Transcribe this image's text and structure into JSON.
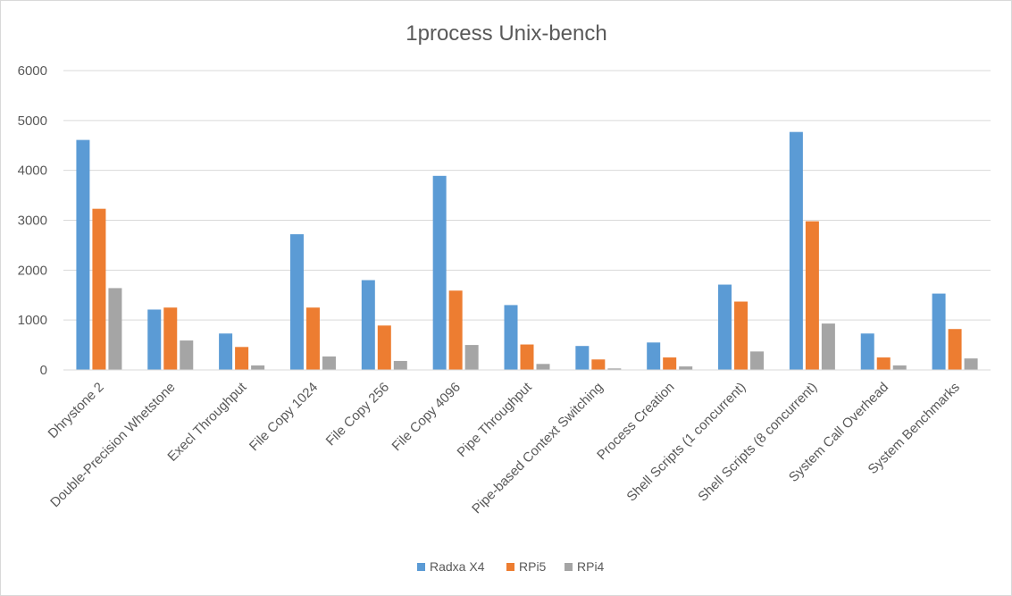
{
  "chart_data": {
    "type": "bar",
    "title": "1process Unix-bench",
    "xlabel": "",
    "ylabel": "",
    "ylim": [
      0,
      6000
    ],
    "yticks": [
      0,
      1000,
      2000,
      3000,
      4000,
      5000,
      6000
    ],
    "grid": true,
    "legend_position": "bottom",
    "categories": [
      "Dhrystone 2",
      "Double-Precision Whetstone",
      "Execl Throughput",
      "File Copy 1024",
      "File Copy 256",
      "File Copy 4096",
      "Pipe Throughput",
      "Pipe-based Context Switching",
      "Process Creation",
      "Shell Scripts (1 concurrent)",
      "Shell Scripts (8 concurrent)",
      "System Call Overhead",
      "System Benchmarks"
    ],
    "series": [
      {
        "name": "Radxa X4",
        "color": "#5b9bd5",
        "values": [
          4610,
          1210,
          730,
          2720,
          1800,
          3890,
          1300,
          480,
          550,
          1710,
          4770,
          730,
          1530
        ]
      },
      {
        "name": "RPi5",
        "color": "#ed7d31",
        "values": [
          3230,
          1250,
          460,
          1250,
          890,
          1590,
          510,
          210,
          250,
          1370,
          2980,
          250,
          820
        ]
      },
      {
        "name": "RPi4",
        "color": "#a5a5a5",
        "values": [
          1640,
          590,
          90,
          270,
          180,
          500,
          120,
          30,
          70,
          370,
          930,
          90,
          230
        ]
      }
    ]
  }
}
